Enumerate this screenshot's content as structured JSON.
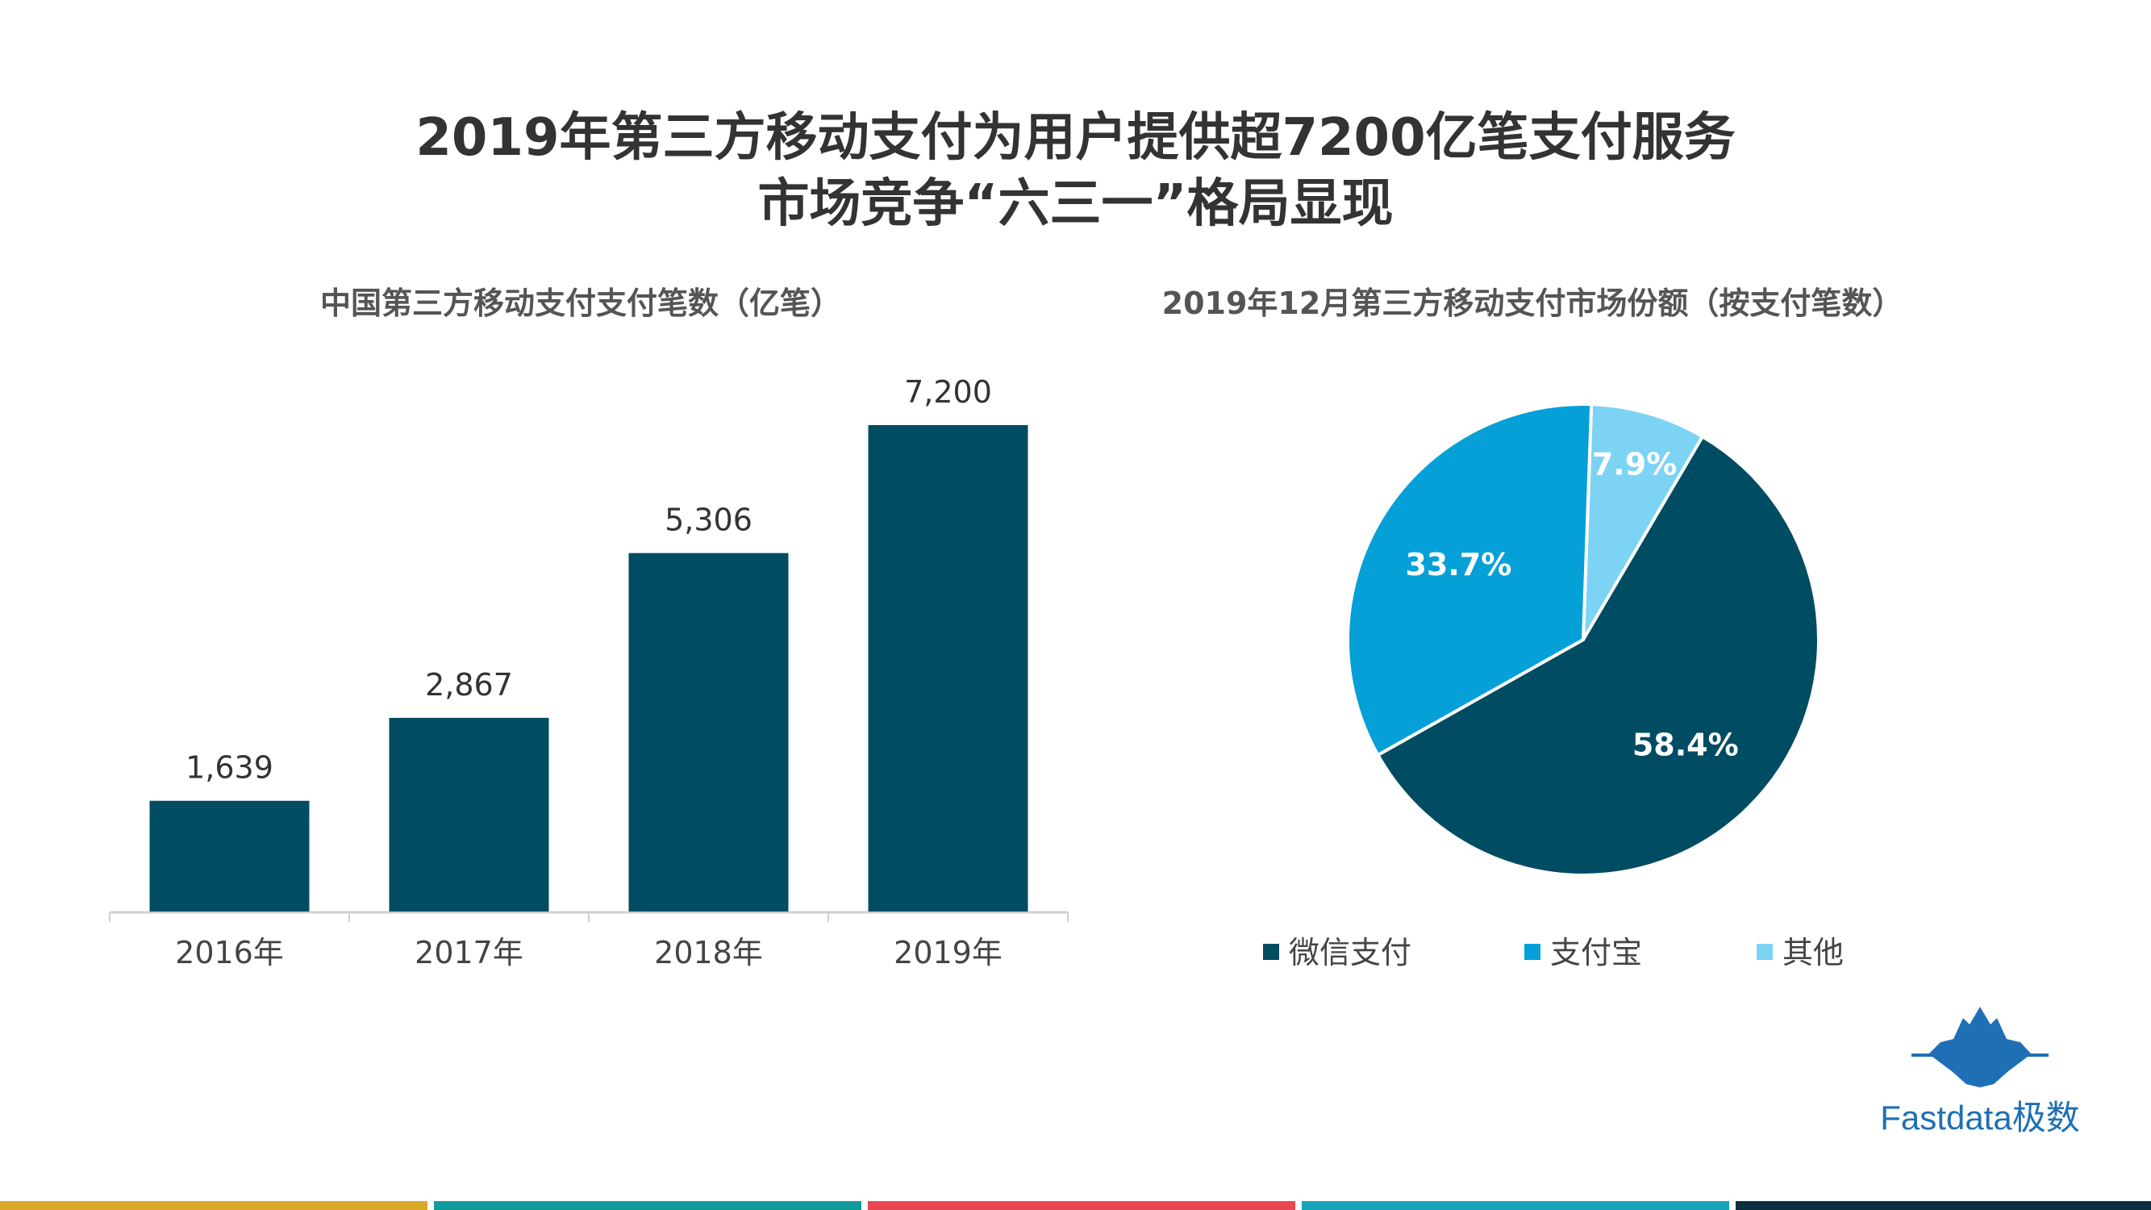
{
  "page": {
    "title_line1": "2019年第三方移动支付为用户提供超7200亿笔支付服务",
    "title_line2": "市场竞争“六三一”格局显现"
  },
  "colors": {
    "bar": "#004c63",
    "axis": "#d0d0d0",
    "text_dark": "#333333",
    "strip": [
      "#d9a824",
      "#119a9c",
      "#e8474f",
      "#17a3b8",
      "#0b2f3f"
    ]
  },
  "chart_data": [
    {
      "type": "bar",
      "title": "中国第三方移动支付支付笔数（亿笔）",
      "categories": [
        "2016年",
        "2017年",
        "2018年",
        "2019年"
      ],
      "values": [
        1639,
        2867,
        5306,
        7200
      ],
      "value_labels": [
        "1,639",
        "2,867",
        "5,306",
        "7,200"
      ],
      "ylim": [
        0,
        7200
      ],
      "grid": false
    },
    {
      "type": "pie",
      "title": "2019年12月第三方移动支付市场份额（按支付笔数）",
      "slices": [
        {
          "name": "其他",
          "value": 7.9,
          "label": "7.9%",
          "color": "#7dd3f4",
          "label_color": "#ffffff"
        },
        {
          "name": "微信支付",
          "value": 58.4,
          "label": "58.4%",
          "color": "#004c63",
          "label_color": "#ffffff"
        },
        {
          "name": "支付宝",
          "value": 33.7,
          "label": "33.7%",
          "color": "#06a0d9",
          "label_color": "#ffffff"
        }
      ],
      "legend": [
        {
          "name": "微信支付",
          "color": "#004c63"
        },
        {
          "name": "支付宝",
          "color": "#06a0d9"
        },
        {
          "name": "其他",
          "color": "#7dd3f4"
        }
      ],
      "legend_position": "bottom"
    }
  ],
  "logo": {
    "text": "Fastdata极数"
  }
}
